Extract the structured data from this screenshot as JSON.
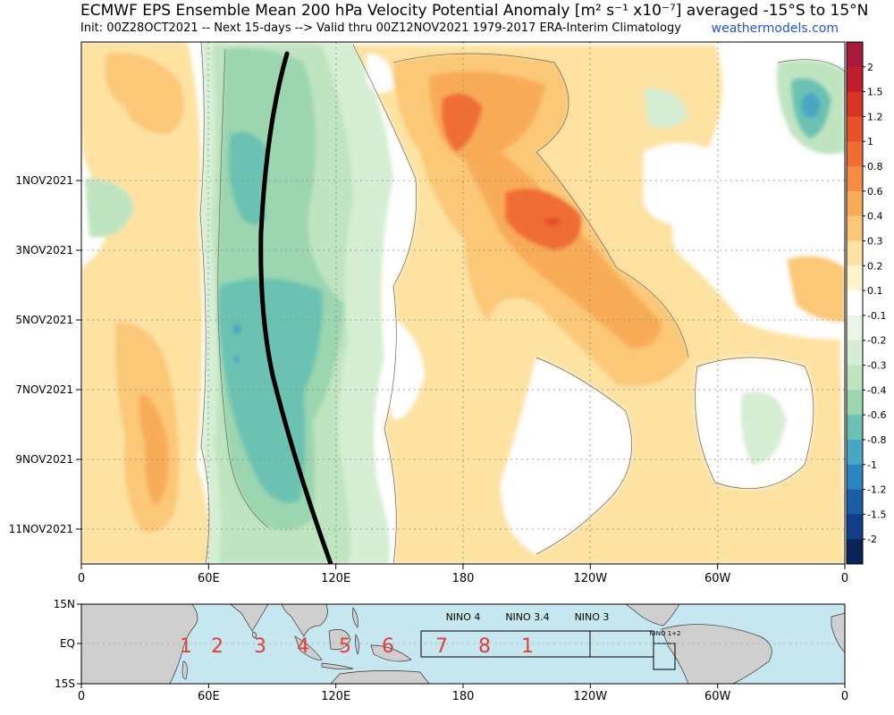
{
  "header": {
    "title": "ECMWF EPS Ensemble Mean 200 hPa Velocity Potential Anomaly [m² s⁻¹ x10⁻⁷] averaged -15°S to 15°N",
    "subtitle": "Init: 00Z28OCT2021 -- Next 15-days --> Valid thru 00Z12NOV2021 1979-2017 ERA-Interim Climatology",
    "credit": "weathermodels.com"
  },
  "chart_data": {
    "type": "heatmap",
    "xlabel": "",
    "ylabel": "",
    "x_ticks": [
      "0",
      "60E",
      "120E",
      "180",
      "120W",
      "60W",
      "0"
    ],
    "y_ticks": [
      "1NOV2021",
      "3NOV2021",
      "5NOV2021",
      "7NOV2021",
      "9NOV2021",
      "11NOV2021"
    ],
    "y_range": [
      "28OCT2021",
      "12NOV2021"
    ],
    "colorbar": {
      "levels": [
        "2",
        "1.5",
        "1.2",
        "1",
        "0.8",
        "0.6",
        "0.4",
        "0.3",
        "0.2",
        "0.1",
        "-0.1",
        "-0.2",
        "-0.3",
        "-0.4",
        "-0.6",
        "-0.8",
        "-1",
        "-1.2",
        "-1.5",
        "-2"
      ],
      "colors": [
        "#a8183a",
        "#c01e2c",
        "#d83424",
        "#e8502a",
        "#f06e34",
        "#f48c44",
        "#f8ac58",
        "#fbc878",
        "#fde2a2",
        "#fff5cc",
        "#ffffff",
        "#eaf5e6",
        "#d6eed3",
        "#bfe4c0",
        "#9bd6b0",
        "#6cc2b2",
        "#49a7c4",
        "#2c85c0",
        "#1a5fa6",
        "#123e86",
        "#0a2458"
      ]
    },
    "mjo_line": {
      "description": "thick black line",
      "x_start_deg_e": 97,
      "x_mid_deg_e": 84,
      "x_end_deg_e": 118
    }
  },
  "map": {
    "lat_labels": [
      "15N",
      "EQ",
      "15S"
    ],
    "lon_labels": [
      "0",
      "60E",
      "120E",
      "180",
      "120W",
      "60W",
      "0"
    ],
    "region_labels": [
      "NINO 4",
      "NINO 3.4",
      "NINO 3",
      "NINO 1+2"
    ],
    "phase_numbers": [
      "1",
      "2",
      "3",
      "4",
      "5",
      "6",
      "7",
      "8",
      "1"
    ],
    "ocean_color": "#c7e7f0",
    "land_color": "#cfcfcf",
    "phase_color": "#e0403a"
  }
}
